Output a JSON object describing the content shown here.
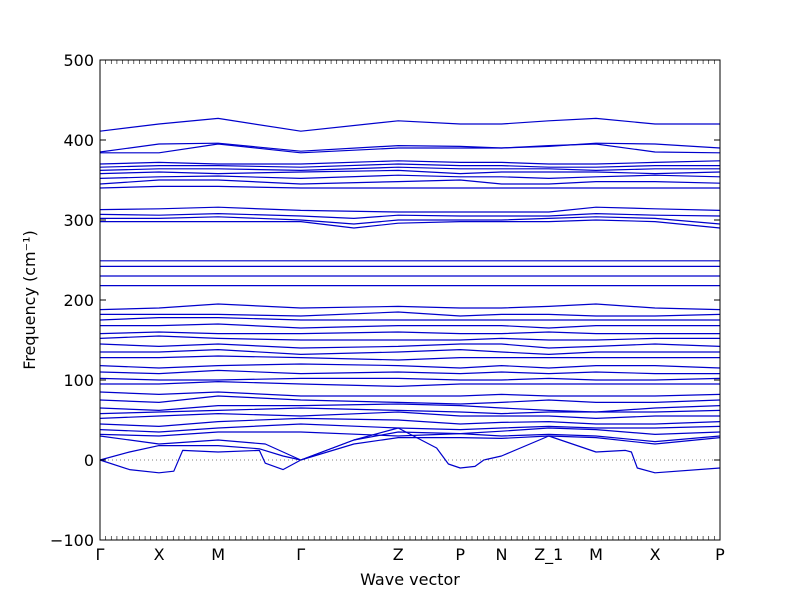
{
  "chart_data": {
    "type": "line",
    "title": "",
    "xlabel": "Wave vector",
    "ylabel": "Frequency (cm⁻¹)",
    "ylim": [
      -100,
      500
    ],
    "yticks": [
      -100,
      0,
      100,
      200,
      300,
      400,
      500
    ],
    "xlim": [
      0,
      10.5
    ],
    "high_symmetry_points": [
      {
        "label": "Γ",
        "x": 0
      },
      {
        "label": "X",
        "x": 1
      },
      {
        "label": "M",
        "x": 2
      },
      {
        "label": "Γ",
        "x": 3.4
      },
      {
        "label": "Z",
        "x": 5.05
      },
      {
        "label": "P",
        "x": 6.1
      },
      {
        "label": "N",
        "x": 6.8
      },
      {
        "label": "Z_1",
        "x": 7.6
      },
      {
        "label": "M",
        "x": 8.4
      },
      {
        "label": "X",
        "x": 9.4
      },
      {
        "label": "P",
        "x": 10.5
      }
    ],
    "zero_line": 0,
    "line_color": "#0000cc",
    "bands": [
      {
        "x": [
          0,
          0.5,
          1,
          1.25,
          1.4,
          2,
          2.7,
          2.8,
          3.1,
          3.4,
          4.3,
          5.05,
          5.7,
          5.9,
          6.1,
          6.35,
          6.5,
          6.8,
          7.6,
          8.4,
          8.9,
          9.0,
          9.1,
          9.4,
          10.5
        ],
        "y": [
          0,
          -12,
          -16,
          -14,
          12,
          10,
          12,
          -4,
          -12,
          0,
          25,
          40,
          15,
          -5,
          -10,
          -8,
          0,
          5,
          30,
          10,
          12,
          10,
          -10,
          -16,
          -10
        ]
      },
      {
        "x": [
          0,
          0.5,
          1,
          2,
          2.7,
          3.1,
          3.4,
          4.3,
          5.05,
          6.1,
          6.8,
          7.6,
          8.4,
          9.4,
          10.5
        ],
        "y": [
          0,
          10,
          18,
          18,
          14,
          5,
          0,
          25,
          35,
          33,
          30,
          32,
          30,
          23,
          30
        ]
      },
      {
        "x": [
          0,
          1,
          2,
          2.8,
          3.4,
          4.3,
          5.05,
          6.1,
          6.8,
          7.6,
          8.4,
          9.4,
          10.5
        ],
        "y": [
          30,
          20,
          25,
          20,
          0,
          20,
          28,
          28,
          27,
          30,
          28,
          20,
          28
        ]
      },
      {
        "x": [
          0,
          1,
          2,
          3.4,
          5.05,
          6.1,
          6.8,
          7.6,
          8.4,
          9.4,
          10.5
        ],
        "y": [
          32,
          30,
          35,
          35,
          30,
          33,
          36,
          40,
          38,
          32,
          35
        ]
      },
      {
        "x": [
          0,
          1,
          2,
          3.4,
          5.05,
          6.1,
          6.8,
          7.6,
          8.4,
          9.4,
          10.5
        ],
        "y": [
          38,
          35,
          40,
          45,
          40,
          38,
          40,
          42,
          40,
          40,
          42
        ]
      },
      {
        "x": [
          0,
          1,
          2,
          3.4,
          5.05,
          6.1,
          6.8,
          7.6,
          8.4,
          9.4,
          10.5
        ],
        "y": [
          45,
          42,
          48,
          52,
          50,
          45,
          47,
          48,
          45,
          45,
          48
        ]
      },
      {
        "x": [
          0,
          1,
          2,
          3.4,
          5.05,
          6.1,
          6.8,
          7.6,
          8.4,
          9.4,
          10.5
        ],
        "y": [
          52,
          55,
          58,
          55,
          60,
          55,
          55,
          55,
          52,
          55,
          55
        ]
      },
      {
        "x": [
          0,
          1,
          2,
          3.4,
          5.05,
          6.1,
          6.8,
          7.6,
          8.4,
          9.4,
          10.5
        ],
        "y": [
          58,
          60,
          62,
          65,
          62,
          60,
          58,
          60,
          60,
          60,
          62
        ]
      },
      {
        "x": [
          0,
          1,
          2,
          3.4,
          5.05,
          6.1,
          6.8,
          7.6,
          8.4,
          9.4,
          10.5
        ],
        "y": [
          65,
          62,
          68,
          68,
          70,
          68,
          65,
          62,
          60,
          65,
          68
        ]
      },
      {
        "x": [
          0,
          1,
          2,
          3.4,
          5.05,
          6.1,
          6.8,
          7.6,
          8.4,
          9.4,
          10.5
        ],
        "y": [
          75,
          72,
          80,
          75,
          72,
          70,
          72,
          75,
          72,
          72,
          75
        ]
      },
      {
        "x": [
          0,
          1,
          2,
          3.4,
          5.05,
          6.1,
          6.8,
          7.6,
          8.4,
          9.4,
          10.5
        ],
        "y": [
          85,
          82,
          85,
          80,
          80,
          80,
          82,
          80,
          80,
          80,
          82
        ]
      },
      {
        "x": [
          0,
          1,
          2,
          3.4,
          5.05,
          6.1,
          6.8,
          7.6,
          8.4,
          9.4,
          10.5
        ],
        "y": [
          95,
          95,
          98,
          95,
          92,
          95,
          95,
          95,
          95,
          95,
          95
        ]
      },
      {
        "x": [
          0,
          1,
          2,
          3.4,
          5.05,
          6.1,
          6.8,
          7.6,
          8.4,
          9.4,
          10.5
        ],
        "y": [
          102,
          100,
          100,
          102,
          102,
          100,
          100,
          102,
          100,
          100,
          102
        ]
      },
      {
        "x": [
          0,
          1,
          2,
          3.4,
          5.05,
          6.1,
          6.8,
          7.6,
          8.4,
          9.4,
          10.5
        ],
        "y": [
          110,
          108,
          112,
          108,
          110,
          108,
          110,
          108,
          110,
          108,
          108
        ]
      },
      {
        "x": [
          0,
          1,
          2,
          3.4,
          5.05,
          6.1,
          6.8,
          7.6,
          8.4,
          9.4,
          10.5
        ],
        "y": [
          118,
          115,
          118,
          120,
          118,
          115,
          118,
          115,
          118,
          118,
          115
        ]
      },
      {
        "x": [
          0,
          1,
          2,
          3.4,
          5.05,
          6.1,
          6.8,
          7.6,
          8.4,
          9.4,
          10.5
        ],
        "y": [
          128,
          128,
          130,
          128,
          125,
          128,
          128,
          128,
          128,
          128,
          128
        ]
      },
      {
        "x": [
          0,
          1,
          2,
          3.4,
          5.05,
          6.1,
          6.8,
          7.6,
          8.4,
          9.4,
          10.5
        ],
        "y": [
          135,
          135,
          138,
          132,
          135,
          138,
          135,
          132,
          135,
          135,
          135
        ]
      },
      {
        "x": [
          0,
          1,
          2,
          3.4,
          5.05,
          6.1,
          6.8,
          7.6,
          8.4,
          9.4,
          10.5
        ],
        "y": [
          145,
          142,
          145,
          140,
          142,
          145,
          145,
          140,
          142,
          145,
          142
        ]
      },
      {
        "x": [
          0,
          1,
          2,
          3.4,
          5.05,
          6.1,
          6.8,
          7.6,
          8.4,
          9.4,
          10.5
        ],
        "y": [
          152,
          155,
          152,
          150,
          150,
          150,
          152,
          150,
          150,
          152,
          152
        ]
      },
      {
        "x": [
          0,
          1,
          2,
          3.4,
          5.05,
          6.1,
          6.8,
          7.6,
          8.4,
          9.4,
          10.5
        ],
        "y": [
          158,
          160,
          158,
          158,
          160,
          158,
          158,
          160,
          158,
          158,
          158
        ]
      },
      {
        "x": [
          0,
          1,
          2,
          3.4,
          5.05,
          6.1,
          6.8,
          7.6,
          8.4,
          9.4,
          10.5
        ],
        "y": [
          168,
          168,
          170,
          165,
          168,
          168,
          168,
          165,
          168,
          168,
          168
        ]
      },
      {
        "x": [
          0,
          1,
          2,
          3.4,
          5.05,
          6.1,
          6.8,
          7.6,
          8.4,
          9.4,
          10.5
        ],
        "y": [
          175,
          178,
          178,
          175,
          175,
          175,
          175,
          175,
          175,
          175,
          175
        ]
      },
      {
        "x": [
          0,
          1,
          2,
          3.4,
          5.05,
          6.1,
          6.8,
          7.6,
          8.4,
          9.4,
          10.5
        ],
        "y": [
          182,
          182,
          182,
          180,
          185,
          180,
          182,
          182,
          180,
          180,
          182
        ]
      },
      {
        "x": [
          0,
          1,
          2,
          3.4,
          5.05,
          6.1,
          6.8,
          7.6,
          8.4,
          9.4,
          10.5
        ],
        "y": [
          188,
          190,
          195,
          190,
          192,
          190,
          190,
          192,
          195,
          190,
          188
        ]
      },
      {
        "x": [
          0,
          1,
          2,
          3.4,
          5.05,
          6.1,
          6.8,
          7.6,
          8.4,
          9.4,
          10.5
        ],
        "y": [
          218,
          218,
          218,
          218,
          218,
          218,
          218,
          218,
          218,
          218,
          218
        ]
      },
      {
        "x": [
          0,
          1,
          2,
          3.4,
          5.05,
          6.1,
          6.8,
          7.6,
          8.4,
          9.4,
          10.5
        ],
        "y": [
          230,
          230,
          230,
          230,
          230,
          230,
          230,
          230,
          230,
          230,
          230
        ]
      },
      {
        "x": [
          0,
          1,
          2,
          3.4,
          5.05,
          6.1,
          6.8,
          7.6,
          8.4,
          9.4,
          10.5
        ],
        "y": [
          242,
          242,
          242,
          242,
          242,
          242,
          242,
          242,
          242,
          242,
          242
        ]
      },
      {
        "x": [
          0,
          1,
          2,
          3.4,
          5.05,
          6.1,
          6.8,
          7.6,
          8.4,
          9.4,
          10.5
        ],
        "y": [
          249,
          249,
          249,
          249,
          249,
          249,
          249,
          249,
          249,
          249,
          249
        ]
      },
      {
        "x": [
          0,
          1,
          2,
          3.4,
          4.3,
          5.05,
          6.1,
          6.8,
          7.6,
          8.4,
          9.4,
          10.5
        ],
        "y": [
          298,
          298,
          298,
          298,
          290,
          296,
          298,
          298,
          298,
          300,
          298,
          290
        ]
      },
      {
        "x": [
          0,
          1,
          2,
          3.4,
          4.3,
          5.05,
          6.1,
          6.8,
          7.6,
          8.4,
          9.4,
          10.5
        ],
        "y": [
          302,
          302,
          304,
          300,
          295,
          300,
          300,
          300,
          302,
          304,
          302,
          295
        ]
      },
      {
        "x": [
          0,
          1,
          2,
          3.4,
          4.3,
          5.05,
          6.1,
          6.8,
          7.6,
          8.4,
          9.4,
          10.5
        ],
        "y": [
          307,
          306,
          308,
          305,
          302,
          306,
          305,
          305,
          305,
          308,
          306,
          305
        ]
      },
      {
        "x": [
          0,
          1,
          2,
          3.4,
          5.05,
          6.1,
          6.8,
          7.6,
          8.4,
          9.4,
          10.5
        ],
        "y": [
          313,
          314,
          316,
          312,
          310,
          310,
          310,
          310,
          316,
          314,
          312
        ]
      },
      {
        "x": [
          0,
          1,
          2,
          3.4,
          5.05,
          6.1,
          6.8,
          7.6,
          8.4,
          9.4,
          10.5
        ],
        "y": [
          340,
          342,
          342,
          340,
          340,
          340,
          340,
          340,
          340,
          340,
          340
        ]
      },
      {
        "x": [
          0,
          1,
          2,
          3.4,
          5.05,
          6.1,
          6.8,
          7.6,
          8.4,
          9.4,
          10.5
        ],
        "y": [
          345,
          350,
          350,
          345,
          348,
          350,
          345,
          345,
          348,
          348,
          346
        ]
      },
      {
        "x": [
          0,
          1,
          2,
          3.4,
          5.05,
          6.1,
          6.8,
          7.6,
          8.4,
          9.4,
          10.5
        ],
        "y": [
          352,
          354,
          355,
          352,
          356,
          354,
          354,
          352,
          354,
          356,
          354
        ]
      },
      {
        "x": [
          0,
          1,
          2,
          3.4,
          5.05,
          6.1,
          6.8,
          7.6,
          8.4,
          9.4,
          10.5
        ],
        "y": [
          358,
          360,
          358,
          360,
          362,
          358,
          360,
          360,
          360,
          358,
          360
        ]
      },
      {
        "x": [
          0,
          1,
          2,
          3.4,
          5.05,
          6.1,
          6.8,
          7.6,
          8.4,
          9.4,
          10.5
        ],
        "y": [
          362,
          364,
          364,
          362,
          366,
          364,
          364,
          364,
          362,
          364,
          364
        ]
      },
      {
        "x": [
          0,
          1,
          2,
          3.4,
          5.05,
          6.1,
          6.8,
          7.6,
          8.4,
          9.4,
          10.5
        ],
        "y": [
          366,
          368,
          368,
          366,
          370,
          368,
          368,
          366,
          366,
          368,
          368
        ]
      },
      {
        "x": [
          0,
          1,
          2,
          3.4,
          5.05,
          6.1,
          6.8,
          7.6,
          8.4,
          9.4,
          10.5
        ],
        "y": [
          370,
          372,
          370,
          370,
          374,
          372,
          372,
          370,
          370,
          372,
          374
        ]
      },
      {
        "x": [
          0,
          1,
          2,
          3.4,
          5.05,
          6.1,
          6.8,
          7.6,
          8.4,
          9.4,
          10.5
        ],
        "y": [
          384,
          384,
          395,
          384,
          390,
          390,
          390,
          393,
          395,
          385,
          384
        ]
      },
      {
        "x": [
          0,
          1,
          2,
          3.4,
          5.05,
          6.1,
          6.8,
          7.6,
          8.4,
          9.4,
          10.5
        ],
        "y": [
          385,
          395,
          396,
          386,
          393,
          392,
          390,
          392,
          396,
          395,
          390
        ]
      },
      {
        "x": [
          0,
          1,
          2,
          3.4,
          5.05,
          6.1,
          6.8,
          7.6,
          8.4,
          9.4,
          10.5
        ],
        "y": [
          411,
          420,
          427,
          411,
          424,
          420,
          420,
          424,
          427,
          420,
          420
        ]
      }
    ]
  }
}
